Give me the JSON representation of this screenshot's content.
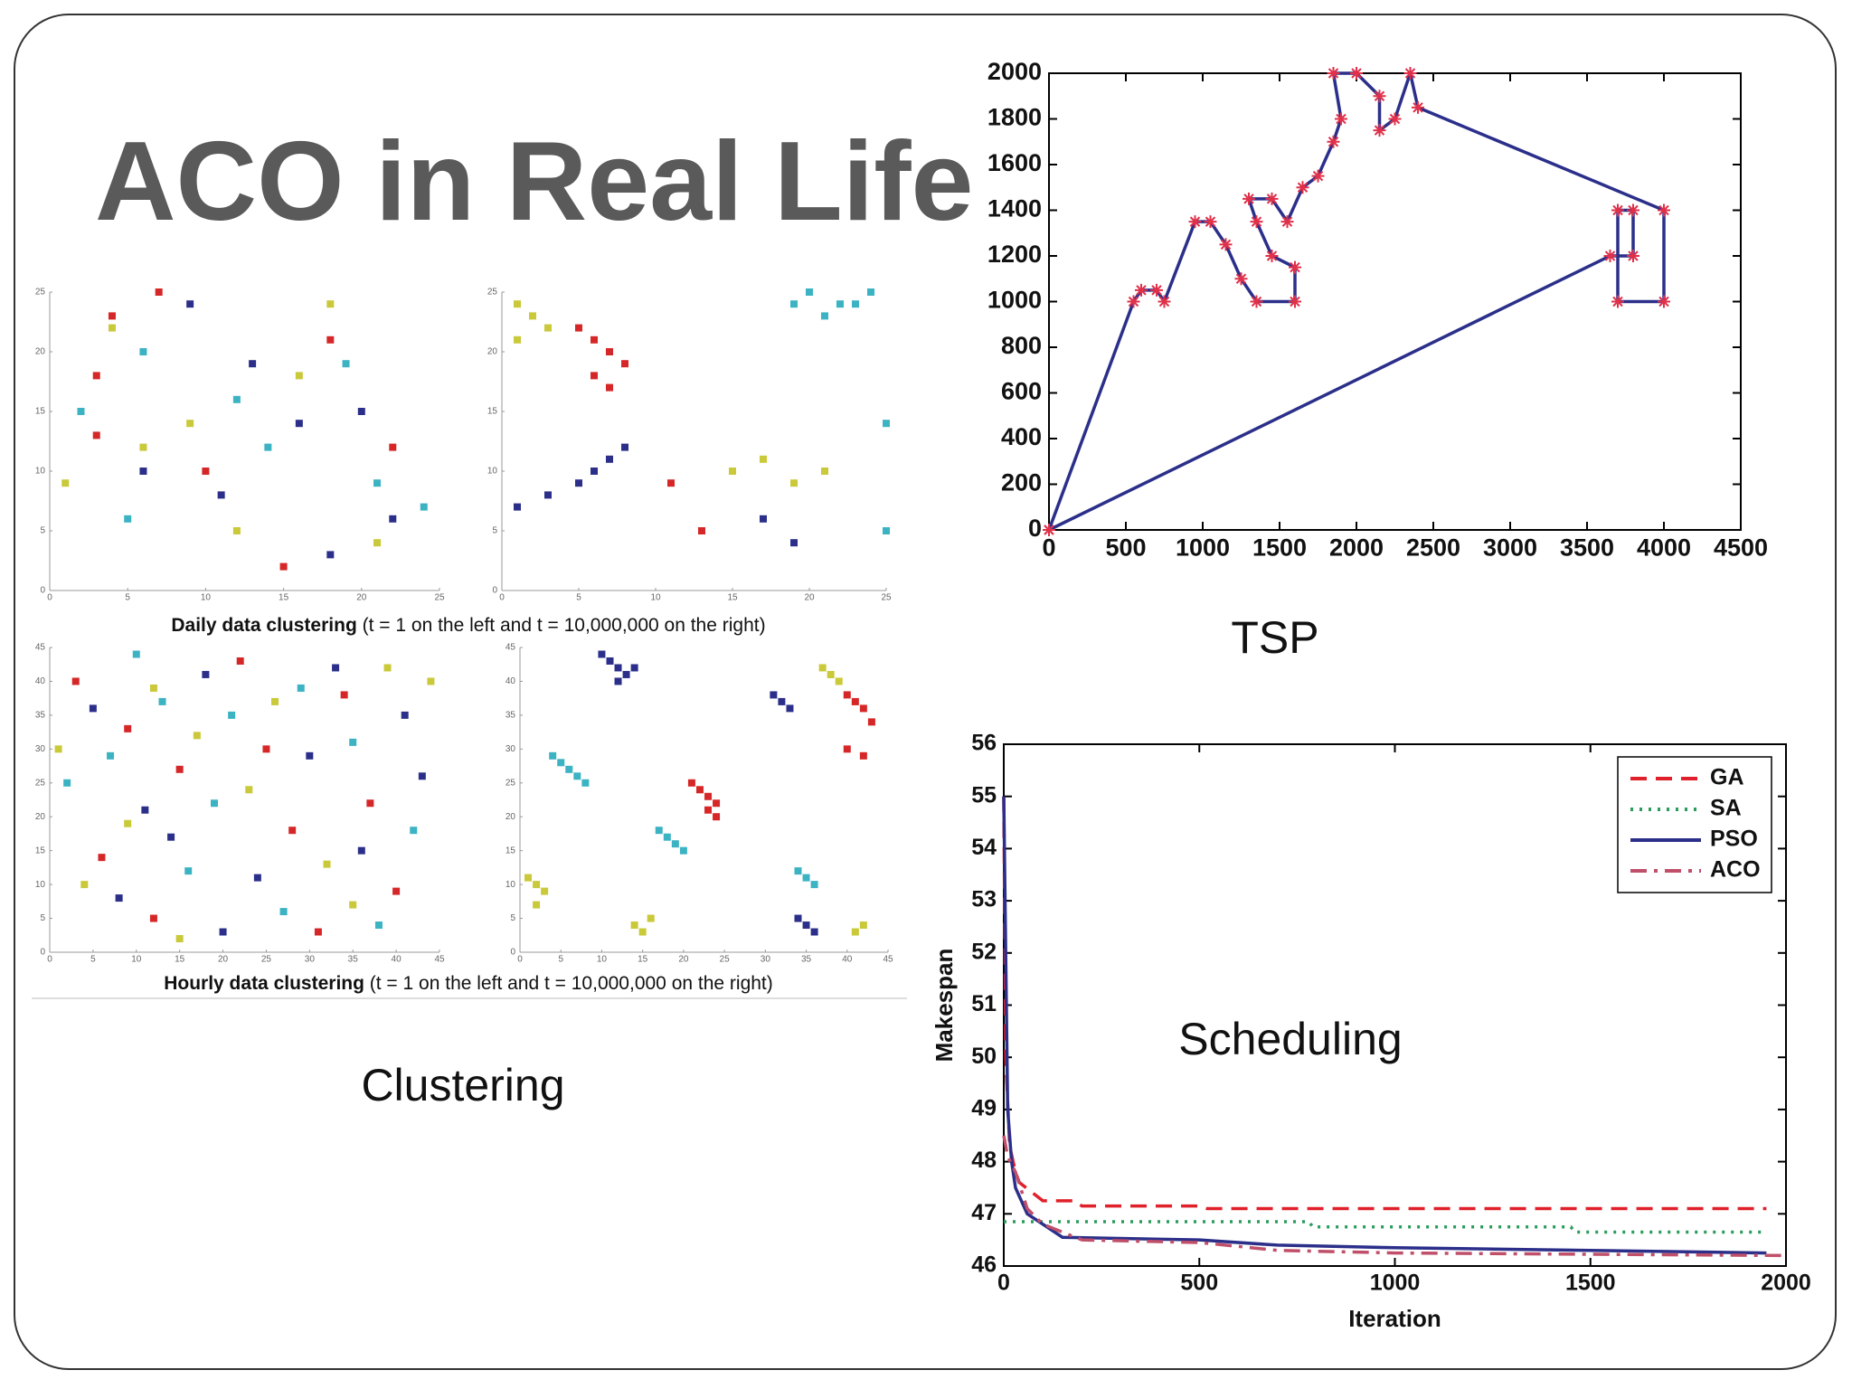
{
  "title": "ACO in Real Life",
  "captions": {
    "clustering": "Clustering",
    "tsp": "TSP",
    "scheduling": "Scheduling"
  },
  "clustering": {
    "daily": {
      "bold": "Daily data clustering",
      "rest": " (t = 1 on the left and t = 10,000,000 on the right)"
    },
    "hourly": {
      "bold": "Hourly data clustering",
      "rest": " (t = 1 on the left and t = 10,000,000 on the right)"
    }
  },
  "chart_data": [
    {
      "type": "line",
      "color": "#2b2f8a",
      "marker_color": "#e0304a",
      "markers": true,
      "x": [
        0,
        550,
        600,
        700,
        750,
        950,
        1050,
        1150,
        1250,
        1350,
        1600,
        1600,
        1450,
        1350,
        1300,
        1450,
        1550,
        1650,
        1750,
        1850,
        1900,
        1850,
        2000,
        2150,
        2150,
        2250,
        2350,
        2400,
        4000,
        4000,
        3700,
        3700,
        3800,
        3800,
        3650,
        0
      ],
      "values": [
        0,
        1000,
        1050,
        1050,
        1000,
        1350,
        1350,
        1250,
        1100,
        1000,
        1000,
        1150,
        1200,
        1350,
        1450,
        1450,
        1350,
        1500,
        1550,
        1700,
        1800,
        2000,
        2000,
        1900,
        1750,
        1800,
        2000,
        1850,
        1400,
        1000,
        1000,
        1400,
        1400,
        1200,
        1200,
        0
      ],
      "xlim": [
        0,
        4500
      ],
      "ylim": [
        0,
        2000
      ],
      "xticks": [
        0,
        500,
        1000,
        1500,
        2000,
        2500,
        3000,
        3500,
        4000,
        4500
      ],
      "yticks": [
        0,
        200,
        400,
        600,
        800,
        1000,
        1200,
        1400,
        1600,
        1800,
        2000
      ]
    },
    {
      "type": "line",
      "x_label": "Iteration",
      "y_label": "Makespan",
      "legend": "upper right",
      "xlim": [
        0,
        2000
      ],
      "ylim": [
        46,
        56
      ],
      "xticks": [
        0,
        500,
        1000,
        1500,
        2000
      ],
      "yticks": [
        46,
        47,
        48,
        49,
        50,
        51,
        52,
        53,
        54,
        55,
        56
      ],
      "series": [
        {
          "name": "GA",
          "color": "#e0202a",
          "dash": "dashed",
          "x": [
            0,
            5,
            15,
            30,
            40,
            100,
            180,
            200,
            500,
            520,
            1950
          ],
          "values": [
            55,
            50,
            48.3,
            47.8,
            47.6,
            47.25,
            47.25,
            47.15,
            47.15,
            47.1,
            47.1
          ]
        },
        {
          "name": "SA",
          "color": "#2a9d5c",
          "dash": "dotted",
          "x": [
            0,
            780,
            790,
            1450,
            1460,
            1950
          ],
          "values": [
            46.85,
            46.85,
            46.75,
            46.75,
            46.65,
            46.65
          ]
        },
        {
          "name": "PSO",
          "color": "#2b2f8a",
          "dash": "solid",
          "x": [
            0,
            5,
            10,
            20,
            30,
            60,
            100,
            150,
            500,
            700,
            1000,
            1500,
            1950
          ],
          "values": [
            55,
            52,
            49,
            48,
            47.5,
            47,
            46.8,
            46.55,
            46.5,
            46.4,
            46.35,
            46.3,
            46.25
          ]
        },
        {
          "name": "ACO",
          "color": "#c0506a",
          "dash": "dashdot",
          "x": [
            0,
            10,
            30,
            60,
            100,
            200,
            500,
            700,
            1000,
            2000
          ],
          "values": [
            48.5,
            48.1,
            47.8,
            47.1,
            46.8,
            46.5,
            46.45,
            46.3,
            46.25,
            46.2
          ]
        }
      ]
    },
    {
      "type": "scatter",
      "xlim": [
        0,
        25
      ],
      "ylim": [
        0,
        25
      ],
      "xticks": [
        0,
        5,
        10,
        15,
        20,
        25
      ],
      "yticks": [
        0,
        5,
        10,
        15,
        20,
        25
      ],
      "series": [
        {
          "color": "#d62728",
          "x": [
            7,
            4,
            18,
            3,
            22,
            10,
            15,
            3
          ],
          "y": [
            25,
            23,
            21,
            18,
            12,
            10,
            2,
            13
          ]
        },
        {
          "color": "#2b2f8a",
          "x": [
            9,
            13,
            20,
            18,
            22,
            6,
            11,
            16
          ],
          "y": [
            24,
            19,
            15,
            3,
            6,
            10,
            8,
            14
          ]
        },
        {
          "color": "#3bb3c3",
          "x": [
            6,
            12,
            21,
            2,
            19,
            5,
            14,
            24
          ],
          "y": [
            20,
            16,
            9,
            15,
            19,
            6,
            12,
            7
          ]
        },
        {
          "color": "#c9c93a",
          "x": [
            4,
            9,
            16,
            1,
            21,
            12,
            6,
            18
          ],
          "y": [
            22,
            14,
            18,
            9,
            4,
            5,
            12,
            24
          ]
        }
      ]
    },
    {
      "type": "scatter",
      "xlim": [
        0,
        25
      ],
      "ylim": [
        0,
        25
      ],
      "xticks": [
        0,
        5,
        10,
        15,
        20,
        25
      ],
      "yticks": [
        0,
        5,
        10,
        15,
        20,
        25
      ],
      "series": [
        {
          "color": "#d62728",
          "x": [
            5,
            6,
            7,
            8,
            6,
            7,
            11,
            13
          ],
          "y": [
            22,
            21,
            20,
            19,
            18,
            17,
            9,
            5
          ]
        },
        {
          "color": "#2b2f8a",
          "x": [
            1,
            3,
            5,
            6,
            7,
            8,
            17,
            19
          ],
          "y": [
            7,
            8,
            9,
            10,
            11,
            12,
            6,
            4
          ]
        },
        {
          "color": "#3bb3c3",
          "x": [
            19,
            20,
            22,
            21,
            23,
            24,
            25,
            25
          ],
          "y": [
            24,
            25,
            24,
            23,
            24,
            25,
            14,
            5
          ]
        },
        {
          "color": "#c9c93a",
          "x": [
            1,
            2,
            3,
            1,
            15,
            17,
            19,
            21
          ],
          "y": [
            24,
            23,
            22,
            21,
            10,
            11,
            9,
            10
          ]
        }
      ]
    },
    {
      "type": "scatter",
      "xlim": [
        0,
        45
      ],
      "ylim": [
        0,
        45
      ],
      "xticks": [
        0,
        5,
        10,
        15,
        20,
        25,
        30,
        35,
        40,
        45
      ],
      "yticks": [
        0,
        5,
        10,
        15,
        20,
        25,
        30,
        35,
        40,
        45
      ],
      "series": [
        {
          "color": "#d62728",
          "x": [
            3,
            9,
            15,
            22,
            28,
            34,
            40,
            12,
            25,
            37,
            6,
            31
          ],
          "y": [
            40,
            33,
            27,
            43,
            18,
            38,
            9,
            5,
            30,
            22,
            14,
            3
          ]
        },
        {
          "color": "#2b2f8a",
          "x": [
            5,
            11,
            18,
            24,
            30,
            36,
            43,
            8,
            20,
            33,
            14,
            41
          ],
          "y": [
            36,
            21,
            41,
            11,
            29,
            15,
            26,
            8,
            3,
            42,
            17,
            35
          ]
        },
        {
          "color": "#3bb3c3",
          "x": [
            2,
            10,
            16,
            21,
            27,
            35,
            42,
            7,
            19,
            29,
            38,
            13
          ],
          "y": [
            25,
            44,
            12,
            35,
            6,
            31,
            18,
            29,
            22,
            39,
            4,
            37
          ]
        },
        {
          "color": "#c9c93a",
          "x": [
            4,
            12,
            17,
            23,
            32,
            39,
            44,
            9,
            26,
            35,
            15,
            1
          ],
          "y": [
            10,
            39,
            32,
            24,
            13,
            42,
            40,
            19,
            37,
            7,
            2,
            30
          ]
        }
      ]
    },
    {
      "type": "scatter",
      "xlim": [
        0,
        45
      ],
      "ylim": [
        0,
        45
      ],
      "xticks": [
        0,
        5,
        10,
        15,
        20,
        25,
        30,
        35,
        40,
        45
      ],
      "yticks": [
        0,
        5,
        10,
        15,
        20,
        25,
        30,
        35,
        40,
        45
      ],
      "series": [
        {
          "color": "#d62728",
          "x": [
            21,
            22,
            23,
            24,
            40,
            41,
            42,
            43,
            40,
            42,
            23,
            24
          ],
          "y": [
            25,
            24,
            23,
            22,
            38,
            37,
            36,
            34,
            30,
            29,
            21,
            20
          ]
        },
        {
          "color": "#2b2f8a",
          "x": [
            10,
            11,
            12,
            13,
            31,
            32,
            33,
            34,
            35,
            36,
            12,
            14
          ],
          "y": [
            44,
            43,
            42,
            41,
            38,
            37,
            36,
            5,
            4,
            3,
            40,
            42
          ]
        },
        {
          "color": "#3bb3c3",
          "x": [
            4,
            5,
            6,
            7,
            17,
            18,
            19,
            20,
            34,
            35,
            36,
            8
          ],
          "y": [
            29,
            28,
            27,
            26,
            18,
            17,
            16,
            15,
            12,
            11,
            10,
            25
          ]
        },
        {
          "color": "#c9c93a",
          "x": [
            1,
            2,
            3,
            2,
            14,
            15,
            16,
            37,
            38,
            39,
            41,
            42
          ],
          "y": [
            11,
            10,
            9,
            7,
            4,
            3,
            5,
            42,
            41,
            40,
            3,
            4
          ]
        }
      ]
    }
  ]
}
